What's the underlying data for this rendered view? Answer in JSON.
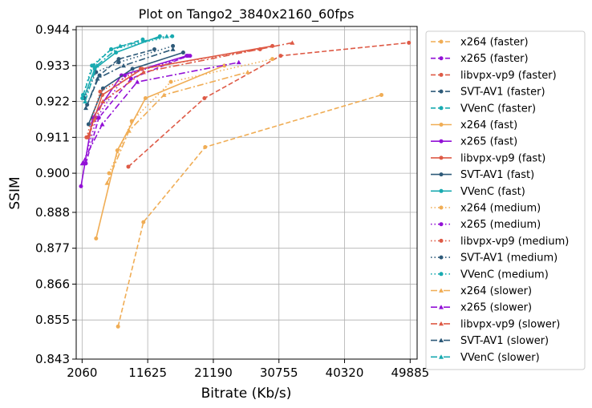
{
  "chart_data": {
    "type": "line",
    "title": "Plot on Tango2_3840x2160_60fps",
    "xlabel": "Bitrate (Kb/s)",
    "ylabel": "SSIM",
    "xlim": [
      1200,
      50900
    ],
    "ylim": [
      0.843,
      0.945
    ],
    "xticks": [
      2060,
      11625,
      21190,
      30755,
      40320,
      49885
    ],
    "xtick_labels": [
      "2060",
      "11625",
      "21190",
      "30755",
      "40320",
      "49885"
    ],
    "yticks": [
      0.843,
      0.855,
      0.866,
      0.877,
      0.888,
      0.9,
      0.911,
      0.922,
      0.933,
      0.944
    ],
    "ytick_labels": [
      "0.843",
      "0.855",
      "0.866",
      "0.877",
      "0.888",
      "0.900",
      "0.911",
      "0.922",
      "0.933",
      "0.944"
    ],
    "grid": true,
    "legend_position": "outside-right",
    "colors": {
      "x264": "#f0ad55",
      "x265": "#9210d6",
      "libvpx-vp9": "#de5a46",
      "SVT-AV1": "#2e5a79",
      "VVenC": "#18aab0"
    },
    "series": [
      {
        "name": "x264 (faster)",
        "codec": "x264",
        "dash": "dashed",
        "marker": "circle",
        "x": [
          7300,
          11000,
          20000,
          45700
        ],
        "y": [
          0.853,
          0.885,
          0.908,
          0.924
        ]
      },
      {
        "name": "x265 (faster)",
        "codec": "x265",
        "dash": "dashed",
        "marker": "circle",
        "x": [
          2600,
          4500,
          9200,
          17500
        ],
        "y": [
          0.903,
          0.917,
          0.929,
          0.936
        ]
      },
      {
        "name": "libvpx-vp9 (faster)",
        "codec": "libvpx-vp9",
        "dash": "dashed",
        "marker": "circle",
        "x": [
          8800,
          19900,
          31000,
          49700
        ],
        "y": [
          0.902,
          0.923,
          0.936,
          0.94
        ]
      },
      {
        "name": "SVT-AV1 (faster)",
        "codec": "SVT-AV1",
        "dash": "dashed",
        "marker": "circle",
        "x": [
          2800,
          4600,
          7400,
          12600
        ],
        "y": [
          0.921,
          0.93,
          0.935,
          0.938
        ]
      },
      {
        "name": "VVenC (faster)",
        "codec": "VVenC",
        "dash": "dashed",
        "marker": "circle",
        "x": [
          2200,
          3700,
          6300,
          10900
        ],
        "y": [
          0.924,
          0.933,
          0.938,
          0.941
        ]
      },
      {
        "name": "x264 (fast)",
        "codec": "x264",
        "dash": "solid",
        "marker": "circle",
        "x": [
          4100,
          7200,
          11300,
          22800
        ],
        "y": [
          0.88,
          0.907,
          0.923,
          0.933
        ]
      },
      {
        "name": "x265 (fast)",
        "codec": "x265",
        "dash": "solid",
        "marker": "circle",
        "x": [
          1900,
          3600,
          7800,
          17300
        ],
        "y": [
          0.896,
          0.917,
          0.93,
          0.936
        ]
      },
      {
        "name": "libvpx-vp9 (fast)",
        "codec": "libvpx-vp9",
        "dash": "solid",
        "marker": "circle",
        "x": [
          2900,
          5000,
          10800,
          29800
        ],
        "y": [
          0.911,
          0.924,
          0.932,
          0.939
        ]
      },
      {
        "name": "SVT-AV1 (fast)",
        "codec": "SVT-AV1",
        "dash": "solid",
        "marker": "circle",
        "x": [
          3000,
          5100,
          9400,
          16800
        ],
        "y": [
          0.915,
          0.926,
          0.932,
          0.937
        ]
      },
      {
        "name": "VVenC (fast)",
        "codec": "VVenC",
        "dash": "solid",
        "marker": "circle",
        "x": [
          2300,
          3900,
          7000,
          13400
        ],
        "y": [
          0.923,
          0.932,
          0.937,
          0.942
        ]
      },
      {
        "name": "x264 (medium)",
        "codec": "x264",
        "dash": "dotted",
        "marker": "circle",
        "x": [
          6000,
          9300,
          15000,
          29800
        ],
        "y": [
          0.9,
          0.916,
          0.928,
          0.935
        ]
      },
      {
        "name": "x265 (medium)",
        "codec": "x265",
        "dash": "dotted",
        "marker": "circle",
        "x": [
          2300,
          4200,
          8300,
          17800
        ],
        "y": [
          0.903,
          0.917,
          0.93,
          0.936
        ]
      },
      {
        "name": "libvpx-vp9 (medium)",
        "codec": "libvpx-vp9",
        "dash": "dotted",
        "marker": "circle",
        "x": [
          2700,
          4700,
          10600,
          28000
        ],
        "y": [
          0.911,
          0.925,
          0.932,
          0.938
        ]
      },
      {
        "name": "SVT-AV1 (medium)",
        "codec": "SVT-AV1",
        "dash": "dotted",
        "marker": "circle",
        "x": [
          2400,
          4100,
          7400,
          15300
        ],
        "y": [
          0.923,
          0.931,
          0.934,
          0.939
        ]
      },
      {
        "name": "VVenC (medium)",
        "codec": "VVenC",
        "dash": "dotted",
        "marker": "circle",
        "x": [
          2100,
          3500,
          6300,
          15200
        ],
        "y": [
          0.923,
          0.933,
          0.938,
          0.942
        ]
      },
      {
        "name": "x264 (slower)",
        "codec": "x264",
        "dash": "dashdot",
        "marker": "triangle",
        "x": [
          5700,
          8900,
          14000,
          26200
        ],
        "y": [
          0.897,
          0.913,
          0.924,
          0.931
        ]
      },
      {
        "name": "x265 (slower)",
        "codec": "x265",
        "dash": "dashdot",
        "marker": "triangle",
        "x": [
          2100,
          5000,
          10100,
          24900
        ],
        "y": [
          0.903,
          0.915,
          0.928,
          0.934
        ]
      },
      {
        "name": "libvpx-vp9 (slower)",
        "codec": "libvpx-vp9",
        "dash": "dashdot",
        "marker": "triangle",
        "x": [
          3100,
          5100,
          11000,
          32700
        ],
        "y": [
          0.912,
          0.922,
          0.931,
          0.94
        ]
      },
      {
        "name": "SVT-AV1 (slower)",
        "codec": "SVT-AV1",
        "dash": "dashdot",
        "marker": "triangle",
        "x": [
          2600,
          4300,
          8100,
          15300
        ],
        "y": [
          0.92,
          0.929,
          0.933,
          0.938
        ]
      },
      {
        "name": "VVenC (slower)",
        "codec": "VVenC",
        "dash": "dashdot",
        "marker": "triangle",
        "x": [
          2500,
          4200,
          7600,
          14400
        ],
        "y": [
          0.922,
          0.933,
          0.939,
          0.942
        ]
      }
    ]
  }
}
